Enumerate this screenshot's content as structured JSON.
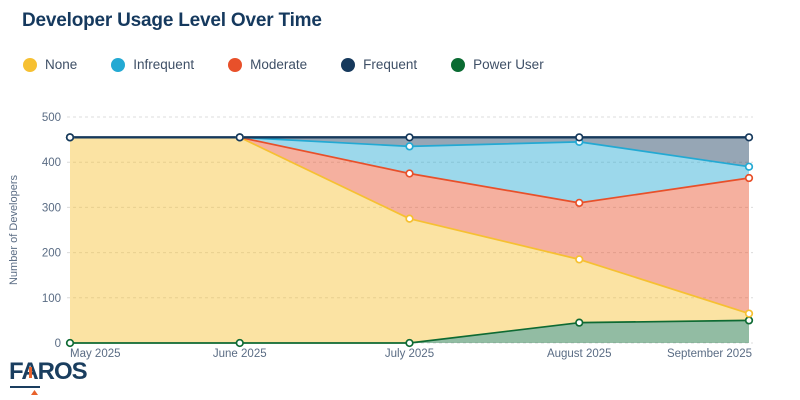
{
  "header": {
    "title": "Developer Usage Level Over Time"
  },
  "legend": {
    "items": [
      {
        "label": "None",
        "color": "#F6C032"
      },
      {
        "label": "Infrequent",
        "color": "#23A9D3"
      },
      {
        "label": "Moderate",
        "color": "#E8502A"
      },
      {
        "label": "Frequent",
        "color": "#16395C"
      },
      {
        "label": "Power User",
        "color": "#0A6B32"
      }
    ]
  },
  "chart_data": {
    "type": "area",
    "stacked": true,
    "title": "Developer Usage Level Over Time",
    "xlabel": "",
    "ylabel": "Number of Developers",
    "categories": [
      "May 2025",
      "June 2025",
      "July 2025",
      "August 2025",
      "September 2025"
    ],
    "series": [
      {
        "name": "Power User",
        "color": "#0E6A33",
        "stroke_width": 1.7,
        "values": [
          0,
          0,
          0,
          45,
          50
        ]
      },
      {
        "name": "None",
        "color": "#F6C032",
        "stroke_width": 1.7,
        "values": [
          455,
          455,
          275,
          140,
          15
        ]
      },
      {
        "name": "Moderate",
        "color": "#E8502A",
        "stroke_width": 1.7,
        "values": [
          0,
          0,
          100,
          125,
          300
        ]
      },
      {
        "name": "Infrequent",
        "color": "#23A9D3",
        "stroke_width": 1.7,
        "values": [
          0,
          0,
          60,
          135,
          25
        ]
      },
      {
        "name": "Frequent",
        "color": "#16395C",
        "stroke_width": 2.4,
        "values": [
          0,
          0,
          20,
          10,
          65
        ]
      }
    ],
    "stack_order_note": "series listed bottom-to-top",
    "ylim": [
      0,
      500
    ],
    "yticks": [
      0,
      100,
      200,
      300,
      400,
      500
    ],
    "grid": true,
    "legend_position": "top",
    "fill_opacity": 0.45
  },
  "colors": {
    "title": "#15395E",
    "legend_text": "#3E4F66",
    "axis_text": "#5A6C84",
    "grid": "#DCDCDC",
    "marker_fill": "#FFFFFF"
  },
  "logo": {
    "text": "FAROS"
  }
}
